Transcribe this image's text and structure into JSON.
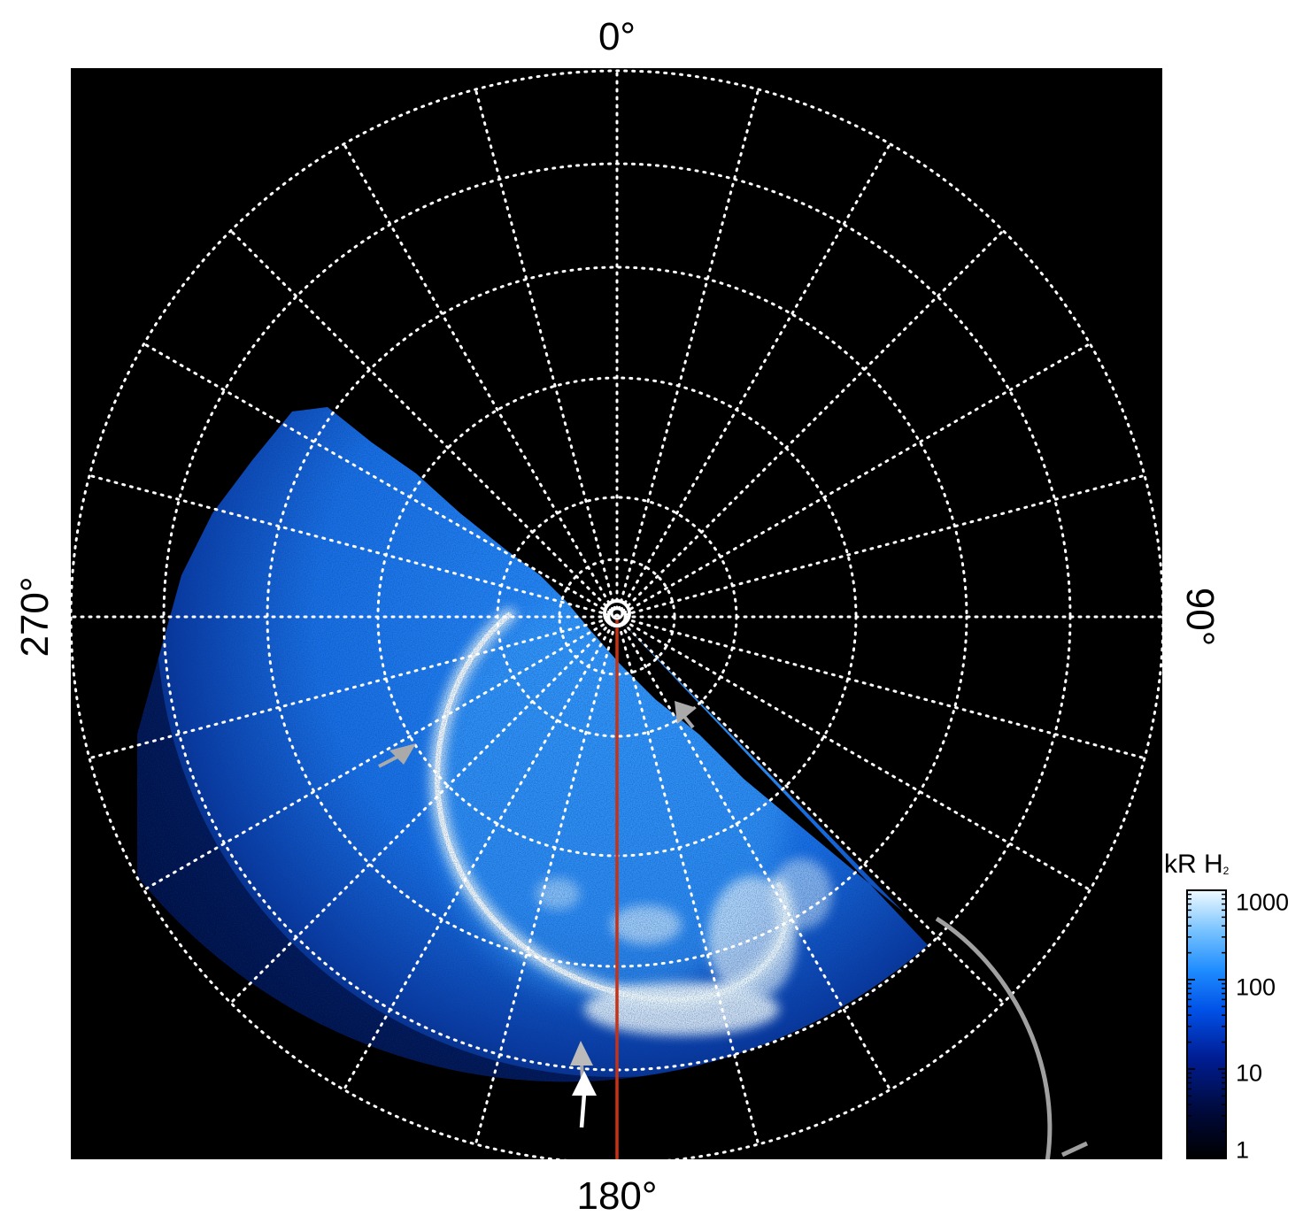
{
  "figure": {
    "angle_labels": {
      "top": "0°",
      "bottom": "180°",
      "left": "270°",
      "right": "90°"
    },
    "colorbar": {
      "title": "kR H",
      "title_subscript": "2",
      "scale": "log",
      "range": [
        1,
        1000
      ],
      "tick_labels": [
        "1000",
        "100",
        "10",
        "1"
      ],
      "colors": [
        "#000000",
        "#000a3c",
        "#001e96",
        "#0050e6",
        "#1e8cff",
        "#78c3ff",
        "#f0faff"
      ]
    },
    "colors": {
      "background": "#000000",
      "grid": "#ffffff",
      "meridian_line": "#c83214",
      "arrow_gray": "#aaaaaa",
      "arrow_white": "#ffffff",
      "side_curve": "#a0a0a0"
    }
  }
}
